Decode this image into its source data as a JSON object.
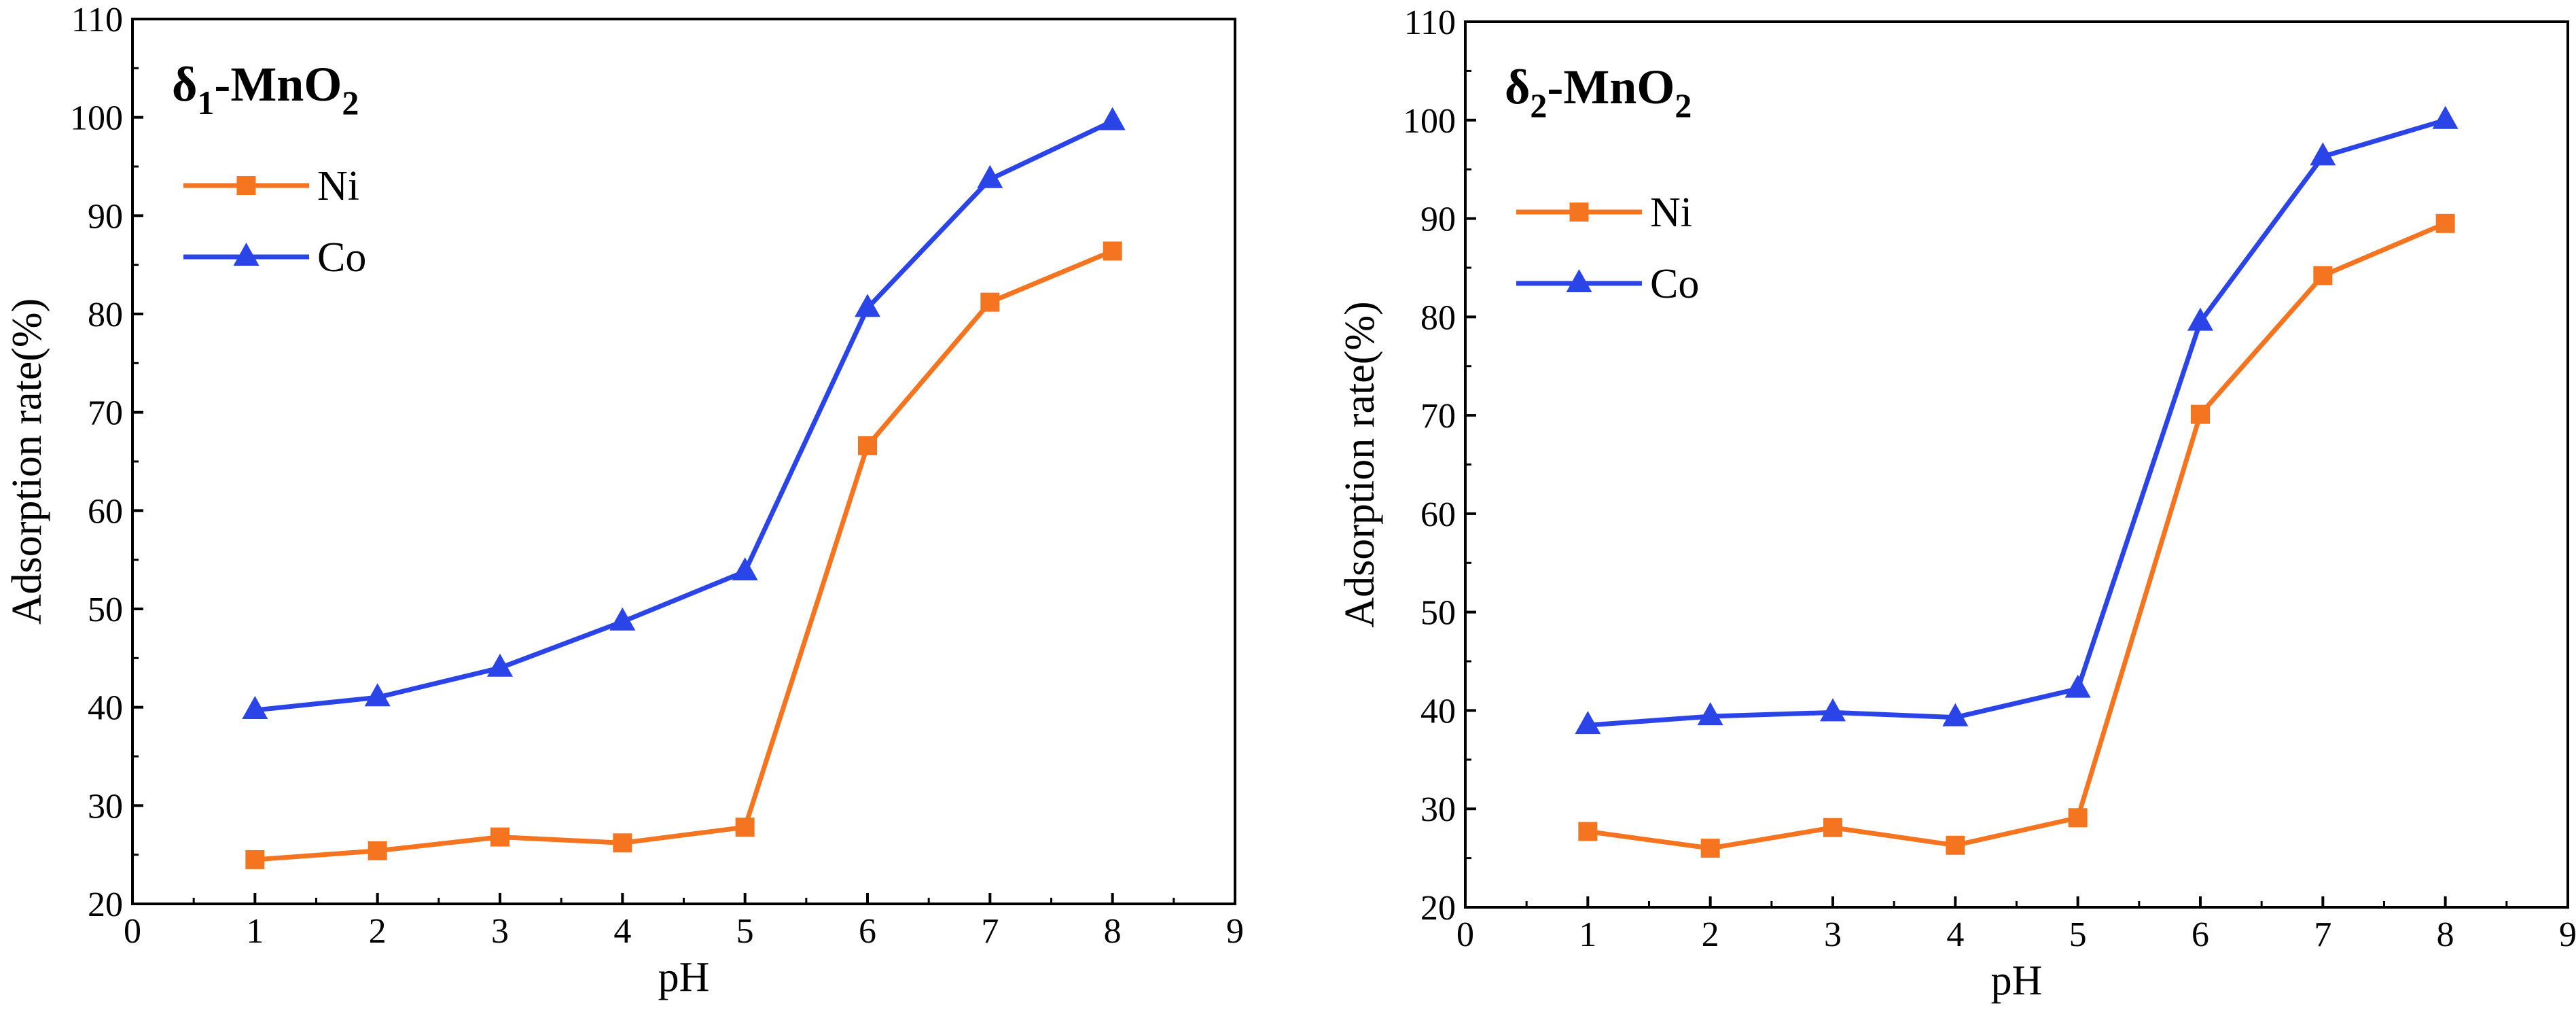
{
  "figure": {
    "colors": {
      "Ni": "#F47420",
      "Co": "#2B44E8",
      "axis": "#000000"
    }
  },
  "chart_data": [
    {
      "type": "line",
      "title": {
        "prefix": "δ",
        "subscript": "1",
        "middle": "-MnO",
        "suffix_sub": "2"
      },
      "xlabel": "pH",
      "ylabel": "Adsorption rate(%)",
      "xlim": [
        0,
        9
      ],
      "ylim": [
        20,
        110
      ],
      "xticks": [
        0,
        1,
        2,
        3,
        4,
        5,
        6,
        7,
        8,
        9
      ],
      "yticks": [
        20,
        30,
        40,
        50,
        60,
        70,
        80,
        90,
        100,
        110
      ],
      "legend_position": "upper-left",
      "x": [
        1,
        2,
        3,
        4,
        5,
        6,
        7,
        8
      ],
      "series": [
        {
          "name": "Ni",
          "marker": "square",
          "color": "#F47420",
          "values": [
            24.5,
            25.4,
            26.8,
            26.2,
            27.8,
            66.6,
            81.2,
            86.4
          ]
        },
        {
          "name": "Co",
          "marker": "triangle",
          "color": "#2B44E8",
          "values": [
            39.7,
            41.0,
            44.0,
            48.7,
            53.8,
            80.6,
            93.7,
            99.6
          ]
        }
      ]
    },
    {
      "type": "line",
      "title": {
        "prefix": "δ",
        "subscript": "2",
        "middle": "-MnO",
        "suffix_sub": "2"
      },
      "xlabel": "pH",
      "ylabel": "Adsorption rate(%)",
      "xlim": [
        0,
        9
      ],
      "ylim": [
        20,
        110
      ],
      "xticks": [
        0,
        1,
        2,
        3,
        4,
        5,
        6,
        7,
        8,
        9
      ],
      "yticks": [
        20,
        30,
        40,
        50,
        60,
        70,
        80,
        90,
        100,
        110
      ],
      "legend_position": "upper-left",
      "x": [
        1,
        2,
        3,
        4,
        5,
        6,
        7,
        8
      ],
      "series": [
        {
          "name": "Ni",
          "marker": "square",
          "color": "#F47420",
          "values": [
            27.7,
            26.0,
            28.1,
            26.3,
            29.1,
            70.1,
            84.2,
            89.5
          ]
        },
        {
          "name": "Co",
          "marker": "triangle",
          "color": "#2B44E8",
          "values": [
            38.5,
            39.4,
            39.8,
            39.3,
            42.2,
            79.5,
            96.3,
            100.0
          ]
        }
      ]
    }
  ]
}
